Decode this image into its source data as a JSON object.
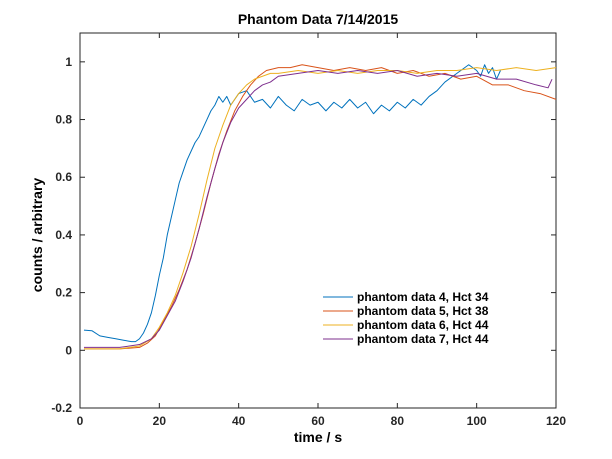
{
  "chart_data": {
    "type": "line",
    "title": "Phantom Data 7/14/2015",
    "xlabel": "time / s",
    "ylabel": "counts / arbitrary",
    "xlim": [
      0,
      120
    ],
    "ylim": [
      -0.2,
      1.1
    ],
    "xticks": [
      0,
      20,
      40,
      60,
      80,
      100,
      120
    ],
    "xtick_labels": [
      "0",
      "20",
      "40",
      "60",
      "80",
      "100",
      "120"
    ],
    "yticks": [
      -0.2,
      0,
      0.2,
      0.4,
      0.6,
      0.8,
      1
    ],
    "ytick_labels": [
      "-0.2",
      "0",
      "0.2",
      "0.4",
      "0.6",
      "0.8",
      "1"
    ],
    "grid": false,
    "legend_position": "lower-right",
    "series": [
      {
        "name": "phantom data 4, Hct 34",
        "color": "#0072BD",
        "x": [
          1,
          3,
          5,
          7,
          9,
          11,
          13,
          14,
          15,
          16,
          17,
          18,
          19,
          20,
          21,
          22,
          23,
          24,
          25,
          26,
          27,
          28,
          29,
          30,
          31,
          32,
          33,
          34,
          35,
          36,
          37,
          38,
          39,
          40,
          42,
          44,
          46,
          48,
          50,
          52,
          54,
          56,
          58,
          60,
          62,
          64,
          66,
          68,
          70,
          72,
          74,
          76,
          78,
          80,
          82,
          84,
          86,
          88,
          90,
          92,
          94,
          96,
          98,
          100,
          101,
          102,
          103,
          104,
          105,
          106
        ],
        "y": [
          0.07,
          0.068,
          0.05,
          0.045,
          0.04,
          0.035,
          0.03,
          0.03,
          0.04,
          0.06,
          0.09,
          0.13,
          0.19,
          0.26,
          0.32,
          0.4,
          0.46,
          0.52,
          0.58,
          0.62,
          0.66,
          0.69,
          0.72,
          0.74,
          0.77,
          0.8,
          0.83,
          0.85,
          0.88,
          0.86,
          0.88,
          0.85,
          0.87,
          0.89,
          0.9,
          0.86,
          0.87,
          0.84,
          0.88,
          0.85,
          0.83,
          0.87,
          0.85,
          0.86,
          0.83,
          0.86,
          0.84,
          0.87,
          0.84,
          0.86,
          0.82,
          0.85,
          0.83,
          0.86,
          0.84,
          0.87,
          0.85,
          0.88,
          0.9,
          0.93,
          0.95,
          0.97,
          0.99,
          0.97,
          0.95,
          0.99,
          0.96,
          0.98,
          0.94,
          0.97
        ]
      },
      {
        "name": "phantom data 5, Hct 38",
        "color": "#D95319",
        "x": [
          1,
          5,
          10,
          15,
          17,
          19,
          21,
          23,
          25,
          27,
          29,
          31,
          33,
          35,
          37,
          39,
          41,
          43,
          45,
          47,
          50,
          53,
          56,
          60,
          64,
          68,
          72,
          76,
          80,
          84,
          88,
          92,
          96,
          100,
          104,
          108,
          112,
          116,
          120
        ],
        "y": [
          0.005,
          0.005,
          0.005,
          0.01,
          0.025,
          0.05,
          0.1,
          0.15,
          0.21,
          0.28,
          0.37,
          0.47,
          0.58,
          0.68,
          0.76,
          0.83,
          0.88,
          0.92,
          0.95,
          0.97,
          0.98,
          0.98,
          0.99,
          0.98,
          0.97,
          0.98,
          0.97,
          0.98,
          0.96,
          0.97,
          0.95,
          0.96,
          0.94,
          0.95,
          0.92,
          0.92,
          0.9,
          0.89,
          0.87
        ]
      },
      {
        "name": "phantom data 6, Hct 44",
        "color": "#EDB120",
        "x": [
          1,
          5,
          10,
          15,
          18,
          20,
          22,
          24,
          26,
          28,
          30,
          32,
          34,
          36,
          38,
          40,
          42,
          44,
          46,
          48,
          50,
          55,
          60,
          65,
          70,
          75,
          80,
          85,
          90,
          95,
          100,
          105,
          110,
          115,
          120
        ],
        "y": [
          0.005,
          0.005,
          0.005,
          0.015,
          0.04,
          0.08,
          0.13,
          0.19,
          0.27,
          0.36,
          0.47,
          0.59,
          0.7,
          0.78,
          0.85,
          0.89,
          0.92,
          0.94,
          0.95,
          0.96,
          0.96,
          0.97,
          0.96,
          0.97,
          0.96,
          0.97,
          0.97,
          0.96,
          0.97,
          0.97,
          0.98,
          0.97,
          0.98,
          0.97,
          0.98
        ]
      },
      {
        "name": "phantom data 7, Hct 44",
        "color": "#7E2F8E",
        "x": [
          1,
          5,
          10,
          15,
          18,
          20,
          22,
          24,
          26,
          28,
          30,
          32,
          34,
          36,
          38,
          40,
          42,
          44,
          46,
          48,
          50,
          55,
          60,
          65,
          70,
          75,
          80,
          85,
          90,
          95,
          100,
          105,
          110,
          115,
          118,
          119
        ],
        "y": [
          0.01,
          0.01,
          0.01,
          0.02,
          0.04,
          0.07,
          0.12,
          0.17,
          0.24,
          0.32,
          0.42,
          0.53,
          0.63,
          0.72,
          0.79,
          0.84,
          0.87,
          0.9,
          0.92,
          0.93,
          0.95,
          0.96,
          0.97,
          0.96,
          0.97,
          0.96,
          0.97,
          0.95,
          0.96,
          0.95,
          0.96,
          0.94,
          0.94,
          0.92,
          0.91,
          0.94
        ]
      }
    ]
  }
}
